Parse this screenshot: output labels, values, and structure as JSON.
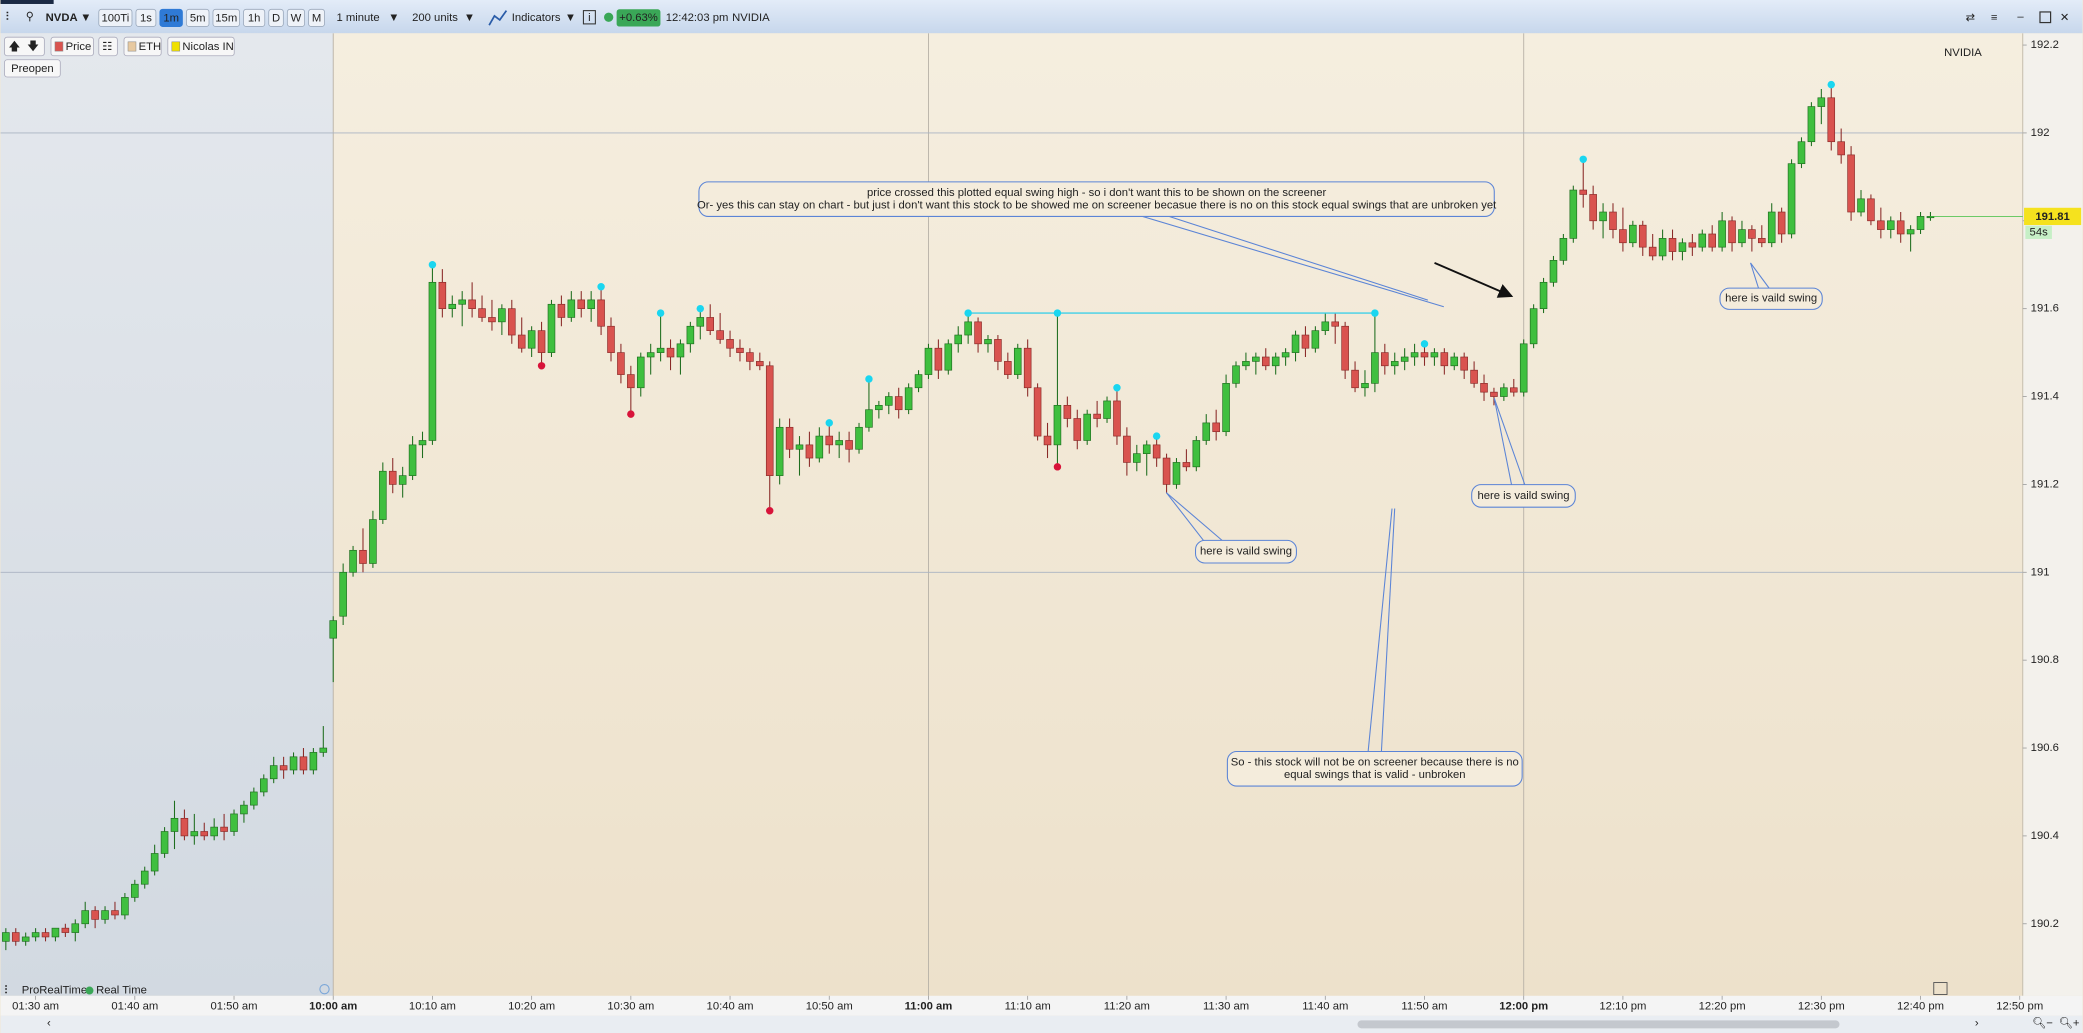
{
  "toolbar": {
    "symbol": "NVDA",
    "periods": [
      {
        "label": "100Ti"
      },
      {
        "label": "1s"
      },
      {
        "label": "1m",
        "active": true
      },
      {
        "label": "5m"
      },
      {
        "label": "15m"
      },
      {
        "label": "1h"
      },
      {
        "label": "D"
      },
      {
        "label": "W"
      },
      {
        "label": "M"
      }
    ],
    "timeframe": "1 minute",
    "units": "200 units",
    "indicators": "Indicators",
    "change": "+0.63%",
    "time": "12:42:03 pm",
    "name": "NVIDIA"
  },
  "legend_bar": {
    "items": [
      "Price",
      "ETH",
      "Nicolas IN"
    ],
    "session": "Preopen"
  },
  "footer": {
    "brand": "ProRealTime",
    "mode": "Real Time"
  },
  "chart_data": {
    "type": "candlestick",
    "watermark": "NVIDIA",
    "up_color": "#3fbf3f",
    "down_color": "#d9534f",
    "swing_high_color": "#1ad6f0",
    "swing_low_color": "#d8143a",
    "line_color": "#3fd0e8",
    "open": [
      190.16,
      190.18,
      190.16,
      190.17,
      190.18,
      190.17,
      190.19,
      190.18,
      190.2,
      190.23,
      190.21,
      190.23,
      190.22,
      190.26,
      190.29,
      190.32,
      190.36,
      190.41,
      190.44,
      190.4,
      190.41,
      190.4,
      190.42,
      190.41,
      190.45,
      190.47,
      190.5,
      190.53,
      190.56,
      190.55,
      190.58,
      190.55,
      190.59,
      190.85,
      190.9,
      191.0,
      191.05,
      191.02,
      191.12,
      191.23,
      191.2,
      191.22,
      191.29,
      191.3,
      191.66,
      191.6,
      191.61,
      191.62,
      191.6,
      191.58,
      191.57,
      191.6,
      191.54,
      191.51,
      191.55,
      191.5,
      191.61,
      191.58,
      191.62,
      191.6,
      191.62,
      191.56,
      191.5,
      191.45,
      191.42,
      191.49,
      191.5,
      191.51,
      191.49,
      191.52,
      191.56,
      191.58,
      191.55,
      191.53,
      191.51,
      191.5,
      191.48,
      191.47,
      191.22,
      191.33,
      191.28,
      191.29,
      191.26,
      191.31,
      191.29,
      191.3,
      191.28,
      191.33,
      191.37,
      191.38,
      191.4,
      191.37,
      191.42,
      191.45,
      191.51,
      191.46,
      191.52,
      191.54,
      191.57,
      191.52,
      191.53,
      191.48,
      191.45,
      191.51,
      191.42,
      191.31,
      191.29,
      191.38,
      191.35,
      191.3,
      191.36,
      191.35,
      191.39,
      191.31,
      191.25,
      191.27,
      191.29,
      191.26,
      191.2,
      191.25,
      191.24,
      191.3,
      191.34,
      191.32,
      191.43,
      191.47,
      191.48,
      191.49,
      191.47,
      191.49,
      191.5,
      191.54,
      191.51,
      191.55,
      191.57,
      191.56,
      191.46,
      191.42,
      191.43,
      191.5,
      191.47,
      191.48,
      191.49,
      191.5,
      191.49,
      191.5,
      191.47,
      191.49,
      191.46,
      191.43,
      191.41,
      191.4,
      191.42,
      191.41,
      191.52,
      191.6,
      191.66,
      191.71,
      191.76,
      191.87,
      191.86,
      191.8,
      191.82,
      191.78,
      191.75,
      191.79,
      191.74,
      191.72,
      191.76,
      191.73,
      191.75,
      191.74,
      191.77,
      191.74,
      191.8,
      191.75,
      191.78,
      191.76,
      191.75,
      191.82,
      191.77,
      191.93,
      191.98,
      192.06,
      192.08,
      191.98,
      191.95,
      191.82,
      191.85,
      191.8,
      191.78,
      191.8,
      191.77,
      191.78,
      191.81
    ],
    "high": [
      190.19,
      190.19,
      190.18,
      190.19,
      190.19,
      190.19,
      190.2,
      190.21,
      190.25,
      190.24,
      190.24,
      190.25,
      190.27,
      190.3,
      190.33,
      190.38,
      190.42,
      190.48,
      190.46,
      190.45,
      190.43,
      190.44,
      190.45,
      190.46,
      190.48,
      190.51,
      190.54,
      190.58,
      190.58,
      190.59,
      190.6,
      190.6,
      190.65,
      190.9,
      191.02,
      191.06,
      191.1,
      191.14,
      191.25,
      191.26,
      191.24,
      191.31,
      191.32,
      191.7,
      191.69,
      191.63,
      191.64,
      191.66,
      191.63,
      191.62,
      191.61,
      191.62,
      191.58,
      191.56,
      191.57,
      191.62,
      191.63,
      191.64,
      191.64,
      191.64,
      191.65,
      191.58,
      191.52,
      191.47,
      191.5,
      191.52,
      191.59,
      191.53,
      191.53,
      191.57,
      191.6,
      191.61,
      191.59,
      191.55,
      191.53,
      191.51,
      191.5,
      191.48,
      191.35,
      191.35,
      191.31,
      191.32,
      191.33,
      191.34,
      191.32,
      191.32,
      191.34,
      191.44,
      191.39,
      191.41,
      191.42,
      191.43,
      191.46,
      191.52,
      191.53,
      191.53,
      191.56,
      191.59,
      191.58,
      191.54,
      191.54,
      191.5,
      191.52,
      191.53,
      191.43,
      191.34,
      191.59,
      191.4,
      191.37,
      191.37,
      191.39,
      191.4,
      191.42,
      191.33,
      191.29,
      191.3,
      191.31,
      191.27,
      191.26,
      191.28,
      191.31,
      191.36,
      191.37,
      191.45,
      191.48,
      191.5,
      191.5,
      191.51,
      191.5,
      191.51,
      191.55,
      191.56,
      191.56,
      191.59,
      191.59,
      191.57,
      191.48,
      191.46,
      191.59,
      191.52,
      191.5,
      191.51,
      191.52,
      191.52,
      191.51,
      191.51,
      191.5,
      191.5,
      191.48,
      191.45,
      191.42,
      191.43,
      191.44,
      191.53,
      191.61,
      191.67,
      191.72,
      191.77,
      191.88,
      191.94,
      191.88,
      191.84,
      191.84,
      191.83,
      191.8,
      191.8,
      191.77,
      191.78,
      191.78,
      191.76,
      191.77,
      191.78,
      191.79,
      191.82,
      191.81,
      191.8,
      191.79,
      191.79,
      191.84,
      191.83,
      191.94,
      191.99,
      192.07,
      192.1,
      192.11,
      192.01,
      191.97,
      191.87,
      191.86,
      191.83,
      191.81,
      191.82,
      191.79,
      191.82,
      191.82
    ],
    "low": [
      190.14,
      190.15,
      190.15,
      190.16,
      190.16,
      190.16,
      190.17,
      190.16,
      190.19,
      190.19,
      190.2,
      190.21,
      190.21,
      190.25,
      190.28,
      190.31,
      190.35,
      190.37,
      190.39,
      190.38,
      190.39,
      190.39,
      190.39,
      190.4,
      190.43,
      190.46,
      190.49,
      190.52,
      190.53,
      190.54,
      190.54,
      190.54,
      190.58,
      190.75,
      190.88,
      190.99,
      191.0,
      191.01,
      191.11,
      191.18,
      191.17,
      191.21,
      191.26,
      191.29,
      191.58,
      191.58,
      191.56,
      191.58,
      191.57,
      191.55,
      191.54,
      191.52,
      191.5,
      191.49,
      191.47,
      191.49,
      191.56,
      191.57,
      191.58,
      191.57,
      191.54,
      191.48,
      191.43,
      191.36,
      191.4,
      191.45,
      191.48,
      191.46,
      191.45,
      191.5,
      191.53,
      191.54,
      191.52,
      191.49,
      191.48,
      191.46,
      191.46,
      191.14,
      191.2,
      191.26,
      191.22,
      191.24,
      191.25,
      191.27,
      191.26,
      191.25,
      191.27,
      191.32,
      191.35,
      191.36,
      191.35,
      191.36,
      191.41,
      191.44,
      191.44,
      191.45,
      191.5,
      191.52,
      191.5,
      191.5,
      191.46,
      191.44,
      191.44,
      191.4,
      191.3,
      191.26,
      191.24,
      191.33,
      191.28,
      191.29,
      191.33,
      191.34,
      191.29,
      191.22,
      191.23,
      191.22,
      191.24,
      191.18,
      191.19,
      191.23,
      191.23,
      191.29,
      191.3,
      191.31,
      191.42,
      191.46,
      191.45,
      191.46,
      191.45,
      191.47,
      191.48,
      191.49,
      191.5,
      191.54,
      191.52,
      191.44,
      191.41,
      191.4,
      191.41,
      191.45,
      191.45,
      191.46,
      191.47,
      191.47,
      191.47,
      191.45,
      191.46,
      191.44,
      191.42,
      191.39,
      191.38,
      191.39,
      191.4,
      191.4,
      191.51,
      191.59,
      191.65,
      191.7,
      191.75,
      191.83,
      191.78,
      191.76,
      191.76,
      191.73,
      191.74,
      191.72,
      191.71,
      191.71,
      191.71,
      191.71,
      191.72,
      191.73,
      191.73,
      191.73,
      191.73,
      191.74,
      191.73,
      191.74,
      191.74,
      191.75,
      191.76,
      191.92,
      191.97,
      192.02,
      191.96,
      191.93,
      191.8,
      191.81,
      191.79,
      191.76,
      191.76,
      191.75,
      191.73,
      191.77,
      191.8
    ],
    "close": [
      190.18,
      190.16,
      190.17,
      190.18,
      190.17,
      190.19,
      190.18,
      190.2,
      190.23,
      190.21,
      190.23,
      190.22,
      190.26,
      190.29,
      190.32,
      190.36,
      190.41,
      190.44,
      190.4,
      190.41,
      190.4,
      190.42,
      190.41,
      190.45,
      190.47,
      190.5,
      190.53,
      190.56,
      190.55,
      190.58,
      190.55,
      190.59,
      190.6,
      190.89,
      191.0,
      191.05,
      191.02,
      191.12,
      191.23,
      191.2,
      191.22,
      191.29,
      191.3,
      191.66,
      191.6,
      191.61,
      191.62,
      191.6,
      191.58,
      191.57,
      191.6,
      191.54,
      191.51,
      191.55,
      191.5,
      191.61,
      191.58,
      191.62,
      191.6,
      191.62,
      191.56,
      191.5,
      191.45,
      191.42,
      191.49,
      191.5,
      191.51,
      191.49,
      191.52,
      191.56,
      191.58,
      191.55,
      191.53,
      191.51,
      191.5,
      191.48,
      191.47,
      191.22,
      191.33,
      191.28,
      191.29,
      191.26,
      191.31,
      191.29,
      191.3,
      191.28,
      191.33,
      191.37,
      191.38,
      191.4,
      191.37,
      191.42,
      191.45,
      191.51,
      191.46,
      191.52,
      191.54,
      191.57,
      191.52,
      191.53,
      191.48,
      191.45,
      191.51,
      191.42,
      191.31,
      191.29,
      191.38,
      191.35,
      191.3,
      191.36,
      191.35,
      191.39,
      191.31,
      191.25,
      191.27,
      191.29,
      191.26,
      191.2,
      191.25,
      191.24,
      191.3,
      191.34,
      191.32,
      191.43,
      191.47,
      191.48,
      191.49,
      191.47,
      191.49,
      191.5,
      191.54,
      191.51,
      191.55,
      191.57,
      191.56,
      191.46,
      191.42,
      191.43,
      191.5,
      191.47,
      191.48,
      191.49,
      191.5,
      191.49,
      191.5,
      191.47,
      191.49,
      191.46,
      191.43,
      191.41,
      191.4,
      191.42,
      191.41,
      191.52,
      191.6,
      191.66,
      191.71,
      191.76,
      191.87,
      191.86,
      191.8,
      191.82,
      191.78,
      191.75,
      191.79,
      191.74,
      191.72,
      191.76,
      191.73,
      191.75,
      191.74,
      191.77,
      191.74,
      191.8,
      191.75,
      191.78,
      191.76,
      191.75,
      191.82,
      191.77,
      191.93,
      191.98,
      192.06,
      192.08,
      191.98,
      191.95,
      191.82,
      191.85,
      191.8,
      191.78,
      191.8,
      191.77,
      191.78,
      191.81,
      191.81
    ],
    "swing_highs": [
      43,
      60,
      66,
      70,
      83,
      87,
      97,
      106,
      112,
      116,
      138,
      143,
      159,
      184
    ],
    "swing_lows": [
      54,
      63,
      77,
      106
    ],
    "equal_highs": [
      97,
      106,
      138
    ],
    "xlim": [
      -0.535,
      203.3
    ],
    "xticks": [
      {
        "value": 3,
        "label": "01:30 am"
      },
      {
        "value": 13,
        "label": "01:40 am"
      },
      {
        "value": 23,
        "label": "01:50 am"
      },
      {
        "value": 33,
        "label": "10:00 am"
      },
      {
        "value": 43,
        "label": "10:10 am"
      },
      {
        "value": 53,
        "label": "10:20 am"
      },
      {
        "value": 63,
        "label": "10:30 am"
      },
      {
        "value": 73,
        "label": "10:40 am"
      },
      {
        "value": 83,
        "label": "10:50 am"
      },
      {
        "value": 93,
        "label": "11:00 am"
      },
      {
        "value": 103,
        "label": "11:10 am"
      },
      {
        "value": 113,
        "label": "11:20 am"
      },
      {
        "value": 123,
        "label": "11:30 am"
      },
      {
        "value": 133,
        "label": "11:40 am"
      },
      {
        "value": 143,
        "label": "11:50 am"
      },
      {
        "value": 153,
        "label": "12:00 pm"
      },
      {
        "value": 163,
        "label": "12:10 pm"
      },
      {
        "value": 173,
        "label": "12:20 pm"
      },
      {
        "value": 183,
        "label": "12:30 pm"
      },
      {
        "value": 193,
        "label": "12:40 pm"
      },
      {
        "value": 203,
        "label": "12:50 pm"
      }
    ],
    "ylim": [
      190.036,
      192.227
    ],
    "yticks": [
      190.2,
      190.4,
      190.6,
      190.8,
      191,
      191.2,
      191.4,
      191.6,
      191.8,
      192,
      192.2
    ],
    "grid": true,
    "last_price": 191.81,
    "countdown": "54s",
    "annotations": [
      {
        "lines": [
          "price crossed this plotted equal swing high - so i don't want this to be shown on the screener",
          "Or- yes this can stay on chart - but just i don't want this stock to be showed me on screener becasue there is no on this stock equal swings that are unbroken yet"
        ]
      },
      {
        "lines": [
          "here is vaild swing"
        ]
      },
      {
        "lines": [
          "here is vaild swing"
        ]
      },
      {
        "lines": [
          "here is vaild swing"
        ]
      },
      {
        "lines": [
          "So - this stock will not be on screener because there is no",
          "equal swings that is valid - unbroken"
        ]
      }
    ]
  }
}
